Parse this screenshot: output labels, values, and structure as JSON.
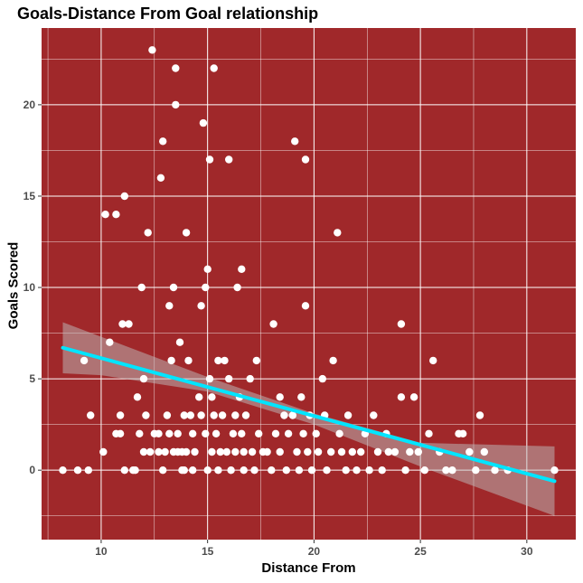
{
  "chart_data": {
    "type": "scatter",
    "title": "Goals-Distance From Goal relationship",
    "xlabel": "Distance From",
    "ylabel": "Goals Scored",
    "xlim": [
      7.2,
      32.3
    ],
    "ylim": [
      -3.8,
      24.2
    ],
    "x_ticks": [
      10,
      15,
      20,
      25,
      30
    ],
    "y_ticks": [
      0,
      5,
      10,
      15,
      20
    ],
    "grid": true,
    "colors": {
      "panel": "#a0282a",
      "grid": "#ffffff",
      "points": "#ffffff",
      "trend_line": "#00e5ff",
      "confidence_band": "#bdbdbd"
    },
    "points": [
      [
        8.2,
        0
      ],
      [
        8.9,
        0
      ],
      [
        9.2,
        6
      ],
      [
        9.4,
        0
      ],
      [
        9.5,
        3
      ],
      [
        10.1,
        1
      ],
      [
        10.2,
        14
      ],
      [
        10.4,
        7
      ],
      [
        10.7,
        14
      ],
      [
        10.7,
        2
      ],
      [
        10.9,
        2
      ],
      [
        10.9,
        3
      ],
      [
        11,
        8
      ],
      [
        11.1,
        0
      ],
      [
        11.1,
        15
      ],
      [
        11.3,
        8
      ],
      [
        11.5,
        0
      ],
      [
        11.6,
        0
      ],
      [
        11.7,
        4
      ],
      [
        11.8,
        2
      ],
      [
        11.9,
        10
      ],
      [
        12,
        5
      ],
      [
        12,
        1
      ],
      [
        12.1,
        3
      ],
      [
        12.2,
        13
      ],
      [
        12.3,
        1
      ],
      [
        12.4,
        23
      ],
      [
        12.5,
        2
      ],
      [
        12.7,
        2
      ],
      [
        12.7,
        1
      ],
      [
        12.8,
        16
      ],
      [
        12.9,
        0
      ],
      [
        12.9,
        18
      ],
      [
        13.0,
        1
      ],
      [
        13.1,
        3
      ],
      [
        13.2,
        9
      ],
      [
        13.2,
        2
      ],
      [
        13.3,
        6
      ],
      [
        13.4,
        1
      ],
      [
        13.4,
        10
      ],
      [
        13.5,
        22
      ],
      [
        13.5,
        20
      ],
      [
        13.6,
        2
      ],
      [
        13.6,
        1
      ],
      [
        13.7,
        7
      ],
      [
        13.8,
        0
      ],
      [
        13.8,
        1
      ],
      [
        13.9,
        3
      ],
      [
        13.9,
        0
      ],
      [
        14.0,
        13
      ],
      [
        14.0,
        1
      ],
      [
        14.1,
        6
      ],
      [
        14.2,
        3
      ],
      [
        14.3,
        2
      ],
      [
        14.3,
        0
      ],
      [
        14.4,
        1
      ],
      [
        14.6,
        4
      ],
      [
        14.7,
        3
      ],
      [
        14.7,
        9
      ],
      [
        14.8,
        19
      ],
      [
        14.9,
        10
      ],
      [
        14.9,
        2
      ],
      [
        15,
        0
      ],
      [
        15,
        11
      ],
      [
        15.1,
        17
      ],
      [
        15.1,
        5
      ],
      [
        15.2,
        4
      ],
      [
        15.2,
        1
      ],
      [
        15.3,
        22
      ],
      [
        15.3,
        3
      ],
      [
        15.4,
        2
      ],
      [
        15.5,
        6
      ],
      [
        15.5,
        0
      ],
      [
        15.6,
        1
      ],
      [
        15.7,
        3
      ],
      [
        15.8,
        6
      ],
      [
        15.9,
        1
      ],
      [
        16.0,
        17
      ],
      [
        16.0,
        5
      ],
      [
        16.1,
        0
      ],
      [
        16.2,
        2
      ],
      [
        16.3,
        1
      ],
      [
        16.3,
        3
      ],
      [
        16.4,
        10
      ],
      [
        16.5,
        4
      ],
      [
        16.6,
        11
      ],
      [
        16.6,
        2
      ],
      [
        16.7,
        0
      ],
      [
        16.7,
        1
      ],
      [
        16.8,
        3
      ],
      [
        17,
        5
      ],
      [
        17.1,
        1
      ],
      [
        17.2,
        0
      ],
      [
        17.3,
        6
      ],
      [
        17.4,
        2
      ],
      [
        17.6,
        1
      ],
      [
        17.8,
        1
      ],
      [
        18,
        0
      ],
      [
        18.1,
        8
      ],
      [
        18.2,
        2
      ],
      [
        18.4,
        4
      ],
      [
        18.4,
        1
      ],
      [
        18.6,
        3
      ],
      [
        18.7,
        0
      ],
      [
        18.8,
        2
      ],
      [
        19,
        3
      ],
      [
        19.1,
        18
      ],
      [
        19.2,
        1
      ],
      [
        19.3,
        0
      ],
      [
        19.4,
        4
      ],
      [
        19.5,
        2
      ],
      [
        19.6,
        9
      ],
      [
        19.6,
        17
      ],
      [
        19.7,
        1
      ],
      [
        19.8,
        3
      ],
      [
        19.9,
        0
      ],
      [
        20.1,
        2
      ],
      [
        20.2,
        1
      ],
      [
        20.4,
        5
      ],
      [
        20.5,
        3
      ],
      [
        20.6,
        0
      ],
      [
        20.8,
        1
      ],
      [
        20.9,
        6
      ],
      [
        21.1,
        13
      ],
      [
        21.2,
        2
      ],
      [
        21.3,
        1
      ],
      [
        21.5,
        0
      ],
      [
        21.6,
        3
      ],
      [
        21.8,
        1
      ],
      [
        22.0,
        0
      ],
      [
        22.2,
        1
      ],
      [
        22.4,
        2
      ],
      [
        22.6,
        0
      ],
      [
        22.8,
        3
      ],
      [
        23.0,
        1
      ],
      [
        23.2,
        0
      ],
      [
        23.4,
        2
      ],
      [
        23.5,
        1
      ],
      [
        23.8,
        1
      ],
      [
        24.1,
        8
      ],
      [
        24.1,
        4
      ],
      [
        24.3,
        0
      ],
      [
        24.5,
        1
      ],
      [
        24.7,
        4
      ],
      [
        24.9,
        1
      ],
      [
        25.2,
        0
      ],
      [
        25.4,
        2
      ],
      [
        25.6,
        6
      ],
      [
        25.9,
        1
      ],
      [
        26.2,
        0
      ],
      [
        26.5,
        0
      ],
      [
        26.8,
        2
      ],
      [
        27.0,
        2
      ],
      [
        27.3,
        1
      ],
      [
        27.6,
        0
      ],
      [
        27.8,
        3
      ],
      [
        28.0,
        1
      ],
      [
        28.5,
        0
      ],
      [
        29.1,
        0
      ],
      [
        31.3,
        0
      ]
    ],
    "trend": {
      "x": [
        8.2,
        31.3
      ],
      "y": [
        6.7,
        -0.6
      ]
    },
    "band": {
      "x": [
        8.2,
        10,
        15,
        20,
        25,
        31.3
      ],
      "upper": [
        8.1,
        7.3,
        5.1,
        3.1,
        1.5,
        1.3
      ],
      "lower": [
        5.3,
        5.2,
        4.3,
        2.5,
        0.2,
        -2.5
      ]
    }
  }
}
